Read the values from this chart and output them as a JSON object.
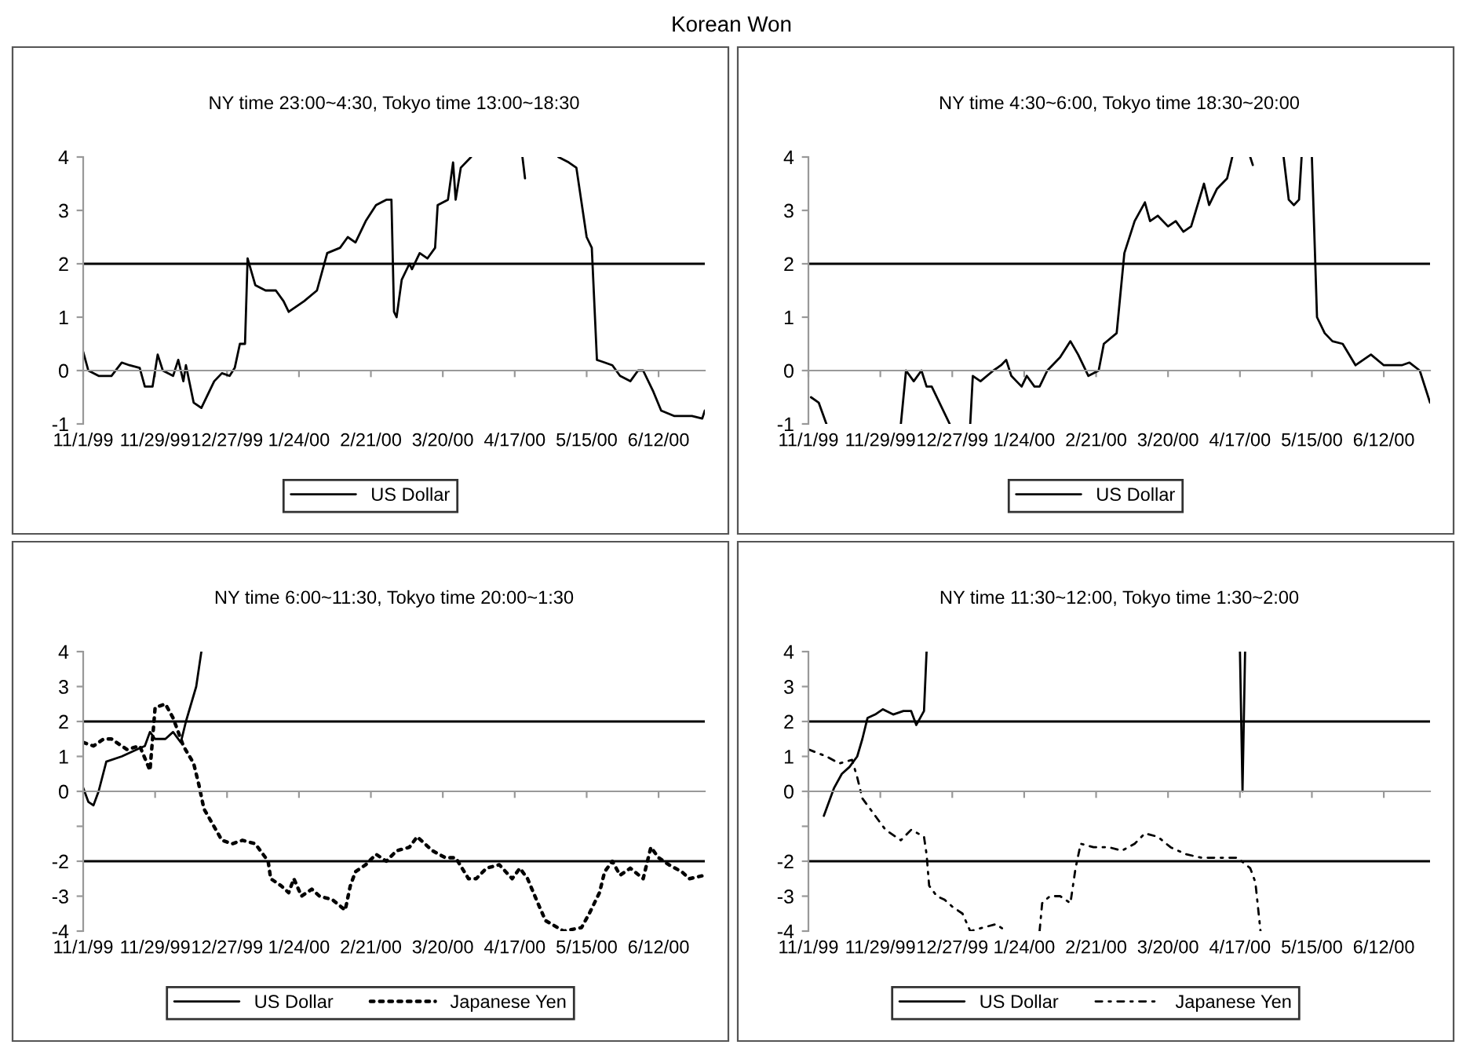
{
  "chart_data": [
    {
      "type": "line",
      "title": "NY time 23:00~4:30, Tokyo time 13:00~18:30",
      "annotations": [
        "Korean Won"
      ],
      "xlim": [
        "1999-11-01",
        "2000-06-30"
      ],
      "xticks": [
        {
          "value": "1999-11-01",
          "label": "11/1/99"
        },
        {
          "value": "1999-11-29",
          "label": "11/29/99"
        },
        {
          "value": "1999-12-27",
          "label": "12/27/99"
        },
        {
          "value": "2000-01-24",
          "label": "1/24/00"
        },
        {
          "value": "2000-02-21",
          "label": "2/21/00"
        },
        {
          "value": "2000-03-20",
          "label": "3/20/00"
        },
        {
          "value": "2000-04-17",
          "label": "4/17/00"
        },
        {
          "value": "2000-05-15",
          "label": "5/15/00"
        },
        {
          "value": "2000-06-12",
          "label": "6/12/00"
        }
      ],
      "ylim": [
        -1,
        4
      ],
      "yticks": [
        -1,
        0,
        1,
        2,
        3,
        4
      ],
      "legend": "bottom",
      "ref_lines": [
        {
          "axis": "y",
          "value": 2
        }
      ],
      "series": [
        {
          "name": "US Dollar",
          "color": "#000000",
          "line_style": "solid",
          "x": [
            "1999-11-01",
            "1999-11-03",
            "1999-11-07",
            "1999-11-12",
            "1999-11-16",
            "1999-11-19",
            "1999-11-23",
            "1999-11-25",
            "1999-11-28",
            "1999-11-30",
            "1999-12-02",
            "1999-12-06",
            "1999-12-08",
            "1999-12-10",
            "1999-12-11",
            "1999-12-14",
            "1999-12-17",
            "1999-12-22",
            "1999-12-25",
            "1999-12-28",
            "1999-12-30",
            "2000-01-01",
            "2000-01-03",
            "2000-01-04",
            "2000-01-07",
            "2000-01-11",
            "2000-01-15",
            "2000-01-18",
            "2000-01-20",
            "2000-01-23",
            "2000-01-26",
            "2000-01-31",
            "2000-02-04",
            "2000-02-09",
            "2000-02-12",
            "2000-02-15",
            "2000-02-19",
            "2000-02-23",
            "2000-02-27",
            "2000-02-29",
            "2000-03-01",
            "2000-03-02",
            "2000-03-04",
            "2000-03-07",
            "2000-03-08",
            "2000-03-11",
            "2000-03-14",
            "2000-03-17",
            "2000-03-18",
            "2000-03-22",
            "2000-03-24",
            "2000-03-25",
            "2000-03-27",
            "2000-03-31",
            "2000-04-10",
            "2000-04-20",
            "2000-04-21",
            "2000-04-27",
            "2000-05-04",
            "2000-05-08",
            "2000-05-11",
            "2000-05-15",
            "2000-05-17",
            "2000-05-19",
            "2000-05-22",
            "2000-05-25",
            "2000-05-28",
            "2000-06-01",
            "2000-06-04",
            "2000-06-06",
            "2000-06-10",
            "2000-06-13",
            "2000-06-18",
            "2000-06-25",
            "2000-06-29",
            "2000-06-30"
          ],
          "values": [
            0.35,
            0,
            -0.1,
            -0.1,
            0.15,
            0.1,
            0.05,
            -0.3,
            -0.3,
            0.3,
            0,
            -0.1,
            0.2,
            -0.2,
            0.1,
            -0.6,
            -0.7,
            -0.2,
            -0.05,
            -0.1,
            0.05,
            0.5,
            0.5,
            2.1,
            1.6,
            1.5,
            1.5,
            1.3,
            1.1,
            1.2,
            1.3,
            1.5,
            2.2,
            2.3,
            2.5,
            2.4,
            2.8,
            3.1,
            3.2,
            3.2,
            1.1,
            1.0,
            1.7,
            2.0,
            1.9,
            2.2,
            2.1,
            2.3,
            3.1,
            3.2,
            3.9,
            3.2,
            3.8,
            4.0,
            null,
            4.0,
            3.6,
            null,
            4.0,
            3.9,
            3.8,
            2.5,
            2.3,
            0.2,
            0.15,
            0.1,
            -0.1,
            -0.2,
            0,
            0,
            -0.4,
            -0.75,
            -0.85,
            -0.85,
            -0.9,
            -0.75
          ]
        }
      ]
    },
    {
      "type": "line",
      "title": "NY time 4:30~6:00, Tokyo time 18:30~20:00",
      "xlim": [
        "1999-11-01",
        "2000-06-30"
      ],
      "xticks": [
        {
          "value": "1999-11-01",
          "label": "11/1/99"
        },
        {
          "value": "1999-11-29",
          "label": "11/29/99"
        },
        {
          "value": "1999-12-27",
          "label": "12/27/99"
        },
        {
          "value": "2000-01-24",
          "label": "1/24/00"
        },
        {
          "value": "2000-02-21",
          "label": "2/21/00"
        },
        {
          "value": "2000-03-20",
          "label": "3/20/00"
        },
        {
          "value": "2000-04-17",
          "label": "4/17/00"
        },
        {
          "value": "2000-05-15",
          "label": "5/15/00"
        },
        {
          "value": "2000-06-12",
          "label": "6/12/00"
        }
      ],
      "ylim": [
        -1,
        4
      ],
      "yticks": [
        -1,
        0,
        1,
        2,
        3,
        4
      ],
      "legend": "bottom",
      "ref_lines": [
        {
          "axis": "y",
          "value": 2
        }
      ],
      "series": [
        {
          "name": "US Dollar",
          "color": "#000000",
          "line_style": "solid",
          "x": [
            "1999-11-02",
            "1999-11-05",
            "1999-11-08",
            "1999-11-20",
            "1999-12-07",
            "1999-12-09",
            "1999-12-12",
            "1999-12-15",
            "1999-12-17",
            "1999-12-19",
            "1999-12-26",
            "1999-12-30",
            "2000-01-03",
            "2000-01-04",
            "2000-01-07",
            "2000-01-12",
            "2000-01-15",
            "2000-01-17",
            "2000-01-19",
            "2000-01-21",
            "2000-01-23",
            "2000-01-25",
            "2000-01-28",
            "2000-01-30",
            "2000-02-02",
            "2000-02-07",
            "2000-02-11",
            "2000-02-14",
            "2000-02-18",
            "2000-02-22",
            "2000-02-24",
            "2000-02-29",
            "2000-03-03",
            "2000-03-07",
            "2000-03-11",
            "2000-03-13",
            "2000-03-16",
            "2000-03-20",
            "2000-03-23",
            "2000-03-26",
            "2000-03-29",
            "2000-04-03",
            "2000-04-05",
            "2000-04-08",
            "2000-04-12",
            "2000-04-14",
            "2000-04-18",
            "2000-04-21",
            "2000-04-22",
            "2000-04-28",
            "2000-05-04",
            "2000-05-06",
            "2000-05-08",
            "2000-05-10",
            "2000-05-11",
            "2000-05-13",
            "2000-05-15",
            "2000-05-17",
            "2000-05-20",
            "2000-05-23",
            "2000-05-27",
            "2000-06-01",
            "2000-06-07",
            "2000-06-12",
            "2000-06-19",
            "2000-06-22",
            "2000-06-26",
            "2000-06-30"
          ],
          "values": [
            -0.5,
            -0.6,
            -1.0,
            null,
            -1.0,
            0.0,
            -0.2,
            0.0,
            -0.3,
            -0.3,
            -1.0,
            null,
            -1.0,
            -0.1,
            -0.2,
            0.0,
            0.1,
            0.2,
            -0.1,
            -0.2,
            -0.3,
            -0.1,
            -0.3,
            -0.3,
            0.0,
            0.25,
            0.55,
            0.3,
            -0.1,
            0.0,
            0.5,
            0.7,
            2.2,
            2.8,
            3.15,
            2.8,
            2.9,
            2.7,
            2.8,
            2.6,
            2.7,
            3.5,
            3.1,
            3.4,
            3.6,
            4.0,
            null,
            4.0,
            3.85,
            null,
            4.0,
            3.2,
            3.1,
            3.2,
            4.0,
            null,
            4.0,
            1.0,
            0.7,
            0.55,
            0.5,
            0.1,
            0.3,
            0.1,
            0.1,
            0.15,
            0.0,
            -0.6
          ]
        }
      ]
    },
    {
      "type": "line",
      "title": "NY time 6:00~11:30, Tokyo time 20:00~1:30",
      "xlim": [
        "1999-11-01",
        "2000-06-30"
      ],
      "xticks": [
        {
          "value": "1999-11-01",
          "label": "11/1/99"
        },
        {
          "value": "1999-11-29",
          "label": "11/29/99"
        },
        {
          "value": "1999-12-27",
          "label": "12/27/99"
        },
        {
          "value": "2000-01-24",
          "label": "1/24/00"
        },
        {
          "value": "2000-02-21",
          "label": "2/21/00"
        },
        {
          "value": "2000-03-20",
          "label": "3/20/00"
        },
        {
          "value": "2000-04-17",
          "label": "4/17/00"
        },
        {
          "value": "2000-05-15",
          "label": "5/15/00"
        },
        {
          "value": "2000-06-12",
          "label": "6/12/00"
        }
      ],
      "ylim": [
        -4,
        4
      ],
      "yticks": [
        -4,
        -3,
        -2,
        {
          "value": -1,
          "label": null
        },
        0,
        1,
        2,
        3,
        4
      ],
      "legend": "bottom",
      "ref_lines": [
        {
          "axis": "y",
          "value": 2
        },
        {
          "axis": "y",
          "value": -2
        }
      ],
      "series": [
        {
          "name": "US Dollar",
          "color": "#000000",
          "line_style": "solid",
          "x": [
            "1999-11-01",
            "1999-11-03",
            "1999-11-05",
            "1999-11-07",
            "1999-11-10",
            "1999-11-16",
            "1999-11-22",
            "1999-11-25",
            "1999-11-27",
            "1999-11-29",
            "1999-12-03",
            "1999-12-06",
            "1999-12-09",
            "1999-12-11",
            "1999-12-15",
            "1999-12-17"
          ],
          "values": [
            0.1,
            -0.3,
            -0.4,
            0.0,
            0.85,
            1.0,
            1.2,
            1.3,
            1.7,
            1.5,
            1.5,
            1.7,
            1.4,
            2.0,
            3.0,
            4.0
          ]
        },
        {
          "name": "Japanese Yen",
          "color": "#000000",
          "line_style": "dotted",
          "x": [
            "1999-11-01",
            "1999-11-05",
            "1999-11-09",
            "1999-11-12",
            "1999-11-18",
            "1999-11-23",
            "1999-11-27",
            "1999-11-29",
            "1999-12-03",
            "1999-12-06",
            "1999-12-10",
            "1999-12-14",
            "1999-12-16",
            "1999-12-18",
            "1999-12-25",
            "1999-12-29",
            "2000-01-02",
            "2000-01-07",
            "2000-01-12",
            "2000-01-13",
            "2000-01-17",
            "2000-01-20",
            "2000-01-22",
            "2000-01-25",
            "2000-01-29",
            "2000-02-01",
            "2000-02-06",
            "2000-02-11",
            "2000-02-13",
            "2000-02-15",
            "2000-02-19",
            "2000-02-23",
            "2000-02-27",
            "2000-03-02",
            "2000-03-07",
            "2000-03-10",
            "2000-03-16",
            "2000-03-21",
            "2000-03-25",
            "2000-03-30",
            "2000-04-02",
            "2000-04-06",
            "2000-04-11",
            "2000-04-16",
            "2000-04-19",
            "2000-04-22",
            "2000-04-26",
            "2000-04-29",
            "2000-05-06",
            "2000-05-13",
            "2000-05-16",
            "2000-05-20",
            "2000-05-22",
            "2000-05-25",
            "2000-05-28",
            "2000-06-01",
            "2000-06-06",
            "2000-06-09",
            "2000-06-12",
            "2000-06-16",
            "2000-06-21",
            "2000-06-24",
            "2000-06-30"
          ],
          "values": [
            1.4,
            1.3,
            1.5,
            1.5,
            1.2,
            1.3,
            0.6,
            2.4,
            2.5,
            2.1,
            1.3,
            0.8,
            0.2,
            -0.5,
            -1.4,
            -1.5,
            -1.4,
            -1.5,
            -2.0,
            -2.5,
            -2.7,
            -2.9,
            -2.5,
            -3.0,
            -2.8,
            -3.0,
            -3.1,
            -3.4,
            -2.7,
            -2.3,
            -2.1,
            -1.8,
            -2.0,
            -1.7,
            -1.6,
            -1.3,
            -1.7,
            -1.9,
            -1.9,
            -2.5,
            -2.5,
            -2.2,
            -2.1,
            -2.5,
            -2.2,
            -2.5,
            -3.2,
            -3.7,
            -4.0,
            -3.9,
            -3.5,
            -2.9,
            -2.3,
            -2.0,
            -2.4,
            -2.2,
            -2.5,
            -1.6,
            -1.9,
            -2.1,
            -2.3,
            -2.5,
            -2.4
          ]
        }
      ]
    },
    {
      "type": "line",
      "title": "NY time 11:30~12:00, Tokyo time 1:30~2:00",
      "xlim": [
        "1999-11-01",
        "2000-06-30"
      ],
      "xticks": [
        {
          "value": "1999-11-01",
          "label": "11/1/99"
        },
        {
          "value": "1999-11-29",
          "label": "11/29/99"
        },
        {
          "value": "1999-12-27",
          "label": "12/27/99"
        },
        {
          "value": "2000-01-24",
          "label": "1/24/00"
        },
        {
          "value": "2000-02-21",
          "label": "2/21/00"
        },
        {
          "value": "2000-03-20",
          "label": "3/20/00"
        },
        {
          "value": "2000-04-17",
          "label": "4/17/00"
        },
        {
          "value": "2000-05-15",
          "label": "5/15/00"
        },
        {
          "value": "2000-06-12",
          "label": "6/12/00"
        }
      ],
      "ylim": [
        -4,
        4
      ],
      "yticks": [
        -4,
        -3,
        -2,
        {
          "value": -1,
          "label": null
        },
        0,
        1,
        2,
        3,
        4
      ],
      "legend": "bottom",
      "ref_lines": [
        {
          "axis": "y",
          "value": 2
        },
        {
          "axis": "y",
          "value": -2
        }
      ],
      "series": [
        {
          "name": "US Dollar",
          "color": "#000000",
          "line_style": "solid",
          "x": [
            "1999-11-07",
            "1999-11-11",
            "1999-11-14",
            "1999-11-17",
            "1999-11-20",
            "1999-11-22",
            "1999-11-24",
            "1999-11-27",
            "1999-11-30",
            "1999-12-04",
            "1999-12-08",
            "1999-12-11",
            "1999-12-13",
            "1999-12-16",
            "1999-12-17",
            "2000-01-01",
            "2000-04-17",
            "2000-04-18",
            "2000-04-19"
          ],
          "values": [
            -0.7,
            0.1,
            0.5,
            0.7,
            1.0,
            1.5,
            2.1,
            2.2,
            2.35,
            2.2,
            2.3,
            2.3,
            1.9,
            2.3,
            4.0,
            null,
            4.0,
            0.0,
            4.0
          ]
        },
        {
          "name": "Japanese Yen",
          "color": "#000000",
          "line_style": "dashdot",
          "x": [
            "1999-11-01",
            "1999-11-08",
            "1999-11-13",
            "1999-11-18",
            "1999-11-20",
            "1999-11-22",
            "1999-12-01",
            "1999-12-07",
            "1999-12-11",
            "1999-12-16",
            "1999-12-17",
            "1999-12-18",
            "1999-12-21",
            "1999-12-24",
            "1999-12-27",
            "1999-12-31",
            "2000-01-03",
            "2000-01-13",
            "2000-01-17",
            "2000-01-24",
            "2000-01-30",
            "2000-01-31",
            "2000-02-03",
            "2000-02-07",
            "2000-02-11",
            "2000-02-13",
            "2000-02-15",
            "2000-02-20",
            "2000-02-26",
            "2000-03-02",
            "2000-03-07",
            "2000-03-11",
            "2000-03-16",
            "2000-03-21",
            "2000-03-27",
            "2000-04-02",
            "2000-04-08",
            "2000-04-13",
            "2000-04-16",
            "2000-04-21",
            "2000-04-23",
            "2000-04-25"
          ],
          "values": [
            1.2,
            1.0,
            0.8,
            0.9,
            0.4,
            -0.2,
            -1.1,
            -1.4,
            -1.1,
            -1.3,
            -1.8,
            -2.7,
            -3.0,
            -3.1,
            -3.3,
            -3.5,
            -4.0,
            -3.8,
            -4.0,
            null,
            -4.0,
            -3.2,
            -3.0,
            -3.0,
            -3.2,
            -2.2,
            -1.5,
            -1.6,
            -1.6,
            -1.7,
            -1.5,
            -1.2,
            -1.3,
            -1.6,
            -1.8,
            -1.9,
            -1.9,
            -1.9,
            -1.9,
            -2.2,
            -2.6,
            -4.0
          ]
        }
      ]
    }
  ]
}
